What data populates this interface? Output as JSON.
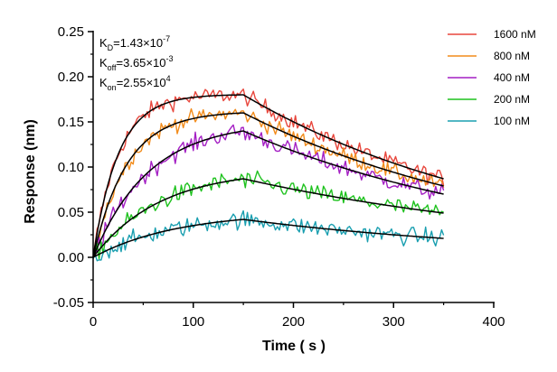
{
  "chart_data": {
    "type": "line",
    "title": "",
    "xlabel": "Time ( s )",
    "ylabel": "Response (nm)",
    "xlim": [
      0,
      400
    ],
    "ylim": [
      -0.05,
      0.25
    ],
    "xticks": [
      "0",
      "100",
      "200",
      "300",
      "400"
    ],
    "yticks": [
      "-0.05",
      "0.00",
      "0.05",
      "0.10",
      "0.15",
      "0.20",
      "0.25"
    ],
    "legend_position": "top-right",
    "annotations": {
      "kd": {
        "base": "K",
        "sub": "D",
        "mant": "=1.43×10",
        "exp": "-7"
      },
      "koff": {
        "base": "K",
        "sub": "off",
        "mant": "=3.65×10",
        "exp": "-3"
      },
      "kon": {
        "base": "K",
        "sub": "on",
        "mant": "=2.55×10",
        "exp": "4"
      }
    },
    "association_end": 150,
    "end_time": 350,
    "fit_color": "#000000",
    "series": [
      {
        "name": "1600 nM",
        "color": "#e8473d",
        "peak": 0.18,
        "end": 0.087,
        "kobs": 0.04,
        "noise": 0.0065
      },
      {
        "name": "800 nM",
        "color": "#f28c1c",
        "peak": 0.16,
        "end": 0.079,
        "kobs": 0.03,
        "noise": 0.0065
      },
      {
        "name": "400 nM",
        "color": "#a41fc4",
        "peak": 0.14,
        "end": 0.07,
        "kobs": 0.018,
        "noise": 0.007
      },
      {
        "name": "200 nM",
        "color": "#1ec21e",
        "peak": 0.087,
        "end": 0.049,
        "kobs": 0.015,
        "noise": 0.007
      },
      {
        "name": "100 nM",
        "color": "#1a9fb0",
        "peak": 0.042,
        "end": 0.021,
        "kobs": 0.012,
        "noise": 0.007
      }
    ]
  }
}
